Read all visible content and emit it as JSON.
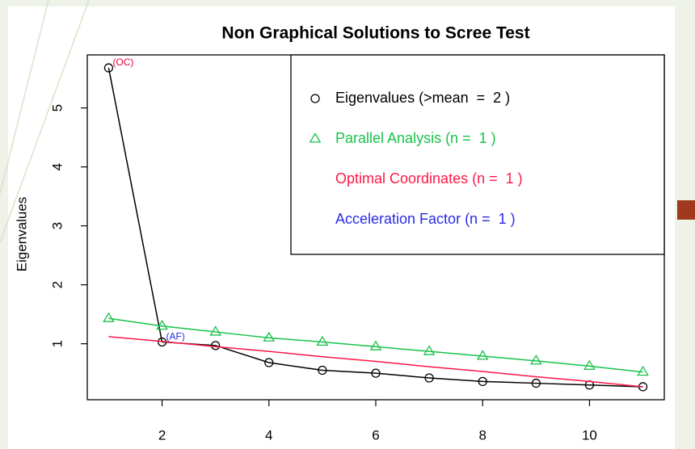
{
  "chart_data": {
    "type": "line",
    "title": "Non Graphical Solutions to Scree Test",
    "y_label": "Eigenvalues",
    "x": [
      1,
      2,
      3,
      4,
      5,
      6,
      7,
      8,
      9,
      10,
      11
    ],
    "series": [
      {
        "name": "Eigenvalues (>mean  =  2 )",
        "color": "#000000",
        "marker": "circle",
        "line": true,
        "values": [
          5.68,
          1.03,
          0.97,
          0.68,
          0.55,
          0.5,
          0.42,
          0.36,
          0.33,
          0.3,
          0.27
        ]
      },
      {
        "name": "Parallel Analysis (n =  1 )",
        "color": "#17c24a",
        "marker": "triangle",
        "line": true,
        "values": [
          1.43,
          1.3,
          1.2,
          1.1,
          1.03,
          0.95,
          0.87,
          0.79,
          0.71,
          0.62,
          0.52
        ]
      },
      {
        "name": "Optimal Coordinates (n =  1 )",
        "color": "#ff1744",
        "marker": "none",
        "line": true,
        "values": [
          1.12,
          1.04,
          0.95,
          0.87,
          0.78,
          0.7,
          0.61,
          0.53,
          0.44,
          0.36,
          0.27
        ]
      }
    ],
    "legend_note": {
      "text": "Acceleration Factor (n =  1 )",
      "color": "#2a2ae8"
    },
    "annotations": [
      {
        "text": "(OC)",
        "color": "#e8003a"
      },
      {
        "text": "(AF)",
        "color": "#2a2ae8"
      }
    ],
    "xlim": [
      0.6,
      11.4
    ],
    "xticks": [
      2,
      4,
      6,
      8,
      10
    ],
    "ylim": [
      0.05,
      5.9
    ],
    "yticks": [
      1,
      2,
      3,
      4,
      5
    ],
    "legend_position": "top-right"
  }
}
